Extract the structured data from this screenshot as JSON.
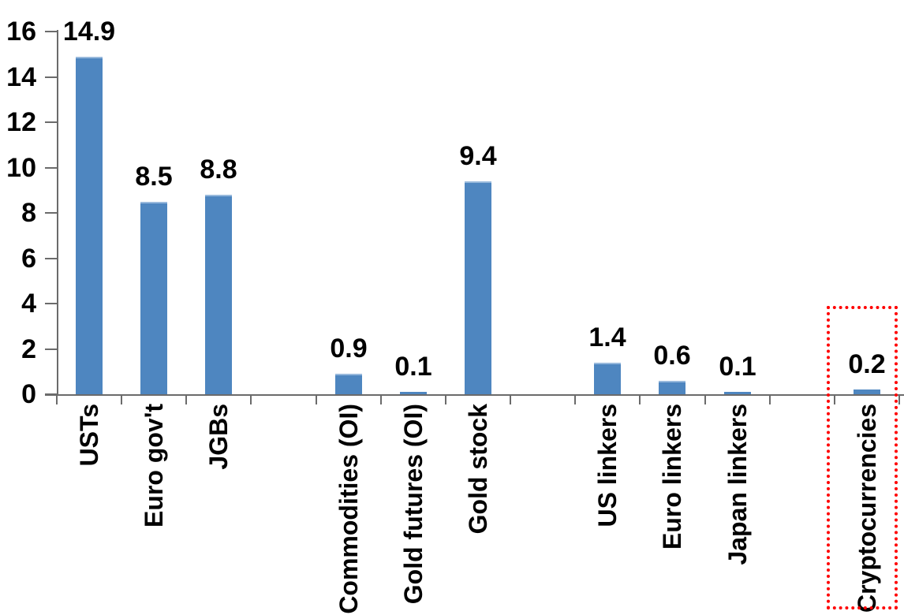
{
  "chart_data": {
    "type": "bar",
    "title": "",
    "xlabel": "",
    "ylabel": "",
    "categories": [
      "USTs",
      "Euro gov't",
      "JGBs",
      "Commodities (OI)",
      "Gold futures (OI)",
      "Gold stock",
      "US linkers",
      "Euro linkers",
      "Japan linkers",
      "Cryptocurrencies"
    ],
    "values": [
      14.9,
      8.5,
      8.8,
      0.9,
      0.1,
      9.4,
      1.4,
      0.6,
      0.1,
      0.2
    ],
    "data_labels": [
      "14.9",
      "8.5",
      "8.8",
      "0.9",
      "0.1",
      "9.4",
      "1.4",
      "0.6",
      "0.1",
      "0.2"
    ],
    "slot_indices": [
      0,
      1,
      2,
      4,
      5,
      6,
      8,
      9,
      10,
      12
    ],
    "total_slots": 13,
    "ylim": [
      0,
      16
    ],
    "ytick_step": 2,
    "ytick_labels": [
      "0",
      "2",
      "4",
      "6",
      "8",
      "10",
      "12",
      "14",
      "16"
    ],
    "grid": false,
    "legend": false,
    "bar_color": "#4e86c0",
    "bar_edge_color": "#98b9dc",
    "axis_color": "#6b6b6b",
    "text_color": "#000000",
    "highlight": {
      "category": "Cryptocurrencies",
      "box_color": "#ff0000",
      "box_style": "dotted"
    }
  }
}
